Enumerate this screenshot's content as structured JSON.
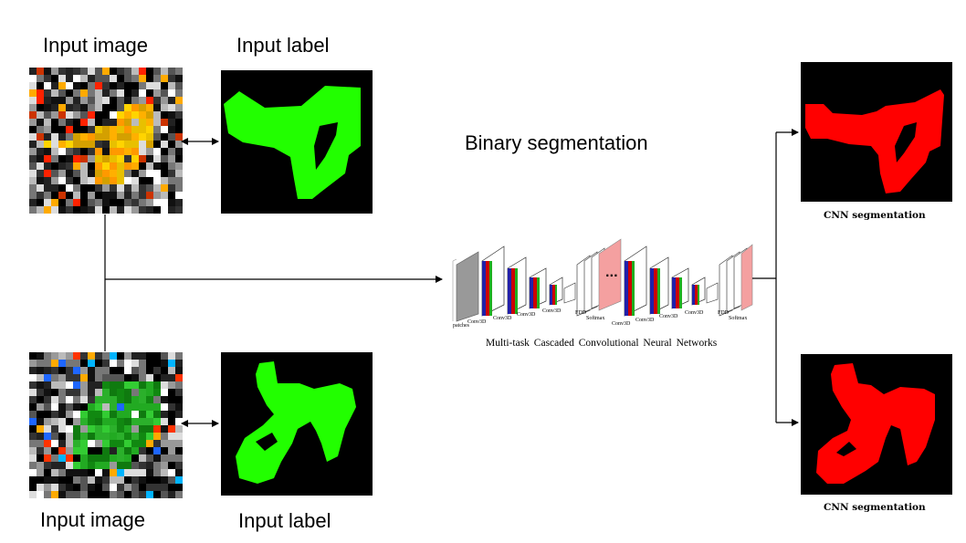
{
  "top_input": {
    "image_label": "Input image",
    "label_label": "Input label"
  },
  "bottom_input": {
    "image_label": "Input image",
    "label_label": "Input label"
  },
  "task_title": "Binary segmentation",
  "network": {
    "caption": "Multi-task Cascaded Convolutional Neural Networks",
    "layer_labels": [
      "patches",
      "Conv3D",
      "Conv3D",
      "Conv3D",
      "Conv3D",
      "FDD",
      "Softmax",
      "Conv3D",
      "Conv3D",
      "Conv3D",
      "Conv3D",
      "FDD",
      "Softmax"
    ],
    "ellipsis": "..."
  },
  "outputs": [
    {
      "caption": "CNN segmentation"
    },
    {
      "caption": "CNN segmentation"
    }
  ],
  "colors": {
    "label_green": "#22ff00",
    "segmentation_red": "#ff0000",
    "background": "#000000",
    "layer_red": "#cc0000",
    "layer_blue": "#2020aa",
    "layer_green": "#20b020",
    "patch_gray": "#999999",
    "pink_block": "#f4a0a0"
  },
  "icons": [
    "double-arrow-icon",
    "arrow-icon"
  ]
}
